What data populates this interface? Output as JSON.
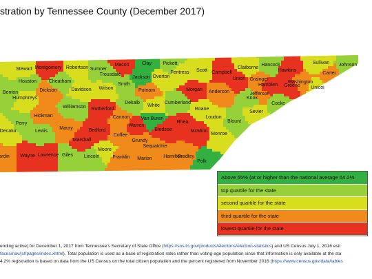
{
  "title": "stration by Tennessee County (December 2017)",
  "colors": {
    "above65": "#33b040",
    "top": "#96d13a",
    "second": "#d8de1e",
    "third": "#f08a1a",
    "lowest": "#e6321e"
  },
  "legend": [
    {
      "label": "Above 65% (at or higher than the national average 64.2%",
      "tier": "above65"
    },
    {
      "label": "top quartile for the state",
      "tier": "top"
    },
    {
      "label": "second quartile for the state",
      "tier": "second"
    },
    {
      "label": "third quartile for the state",
      "tier": "third"
    },
    {
      "label": "lowest quartile for the state",
      "tier": "lowest"
    }
  ],
  "counties": [
    {
      "name": "Stewart",
      "tier": "second"
    },
    {
      "name": "Montgomery",
      "tier": "lowest"
    },
    {
      "name": "Robertson",
      "tier": "second"
    },
    {
      "name": "Sumner",
      "tier": "top"
    },
    {
      "name": "Macon",
      "tier": "lowest"
    },
    {
      "name": "Clay",
      "tier": "above65"
    },
    {
      "name": "Pickett",
      "tier": "top"
    },
    {
      "name": "Fentress",
      "tier": "second"
    },
    {
      "name": "Scott",
      "tier": "second"
    },
    {
      "name": "Campbell",
      "tier": "lowest"
    },
    {
      "name": "Claiborne",
      "tier": "second"
    },
    {
      "name": "Hancock",
      "tier": "top"
    },
    {
      "name": "Hawkins",
      "tier": "lowest"
    },
    {
      "name": "Sullivan",
      "tier": "second"
    },
    {
      "name": "Johnson",
      "tier": "top"
    },
    {
      "name": "Carter",
      "tier": "third"
    },
    {
      "name": "Unicoi",
      "tier": "second"
    },
    {
      "name": "Washington",
      "tier": "third"
    },
    {
      "name": "Greene",
      "tier": "lowest"
    },
    {
      "name": "Hamblen",
      "tier": "lowest"
    },
    {
      "name": "Grainger",
      "tier": "third"
    },
    {
      "name": "Union",
      "tier": "lowest"
    },
    {
      "name": "Anderson",
      "tier": "third"
    },
    {
      "name": "Morgan",
      "tier": "lowest"
    },
    {
      "name": "Overton",
      "tier": "second"
    },
    {
      "name": "Jackson",
      "tier": "above65"
    },
    {
      "name": "Trousdale",
      "tier": "top"
    },
    {
      "name": "Smith",
      "tier": "top"
    },
    {
      "name": "Putnam",
      "tier": "third"
    },
    {
      "name": "Cumberland",
      "tier": "top"
    },
    {
      "name": "Roane",
      "tier": "second"
    },
    {
      "name": "Knox",
      "tier": "top"
    },
    {
      "name": "Jefferson",
      "tier": "third"
    },
    {
      "name": "Cocke",
      "tier": "top"
    },
    {
      "name": "Sevier",
      "tier": "second"
    },
    {
      "name": "Blount",
      "tier": "top"
    },
    {
      "name": "Loudon",
      "tier": "second"
    },
    {
      "name": "Monroe",
      "tier": "second"
    },
    {
      "name": "McMinn",
      "tier": "lowest"
    },
    {
      "name": "Rhea",
      "tier": "lowest"
    },
    {
      "name": "Bledsoe",
      "tier": "lowest"
    },
    {
      "name": "Van Buren",
      "tier": "above65"
    },
    {
      "name": "White",
      "tier": "second"
    },
    {
      "name": "Dekalb",
      "tier": "top"
    },
    {
      "name": "Wilson",
      "tier": "second"
    },
    {
      "name": "Davidson",
      "tier": "second"
    },
    {
      "name": "Cheatham",
      "tier": "top"
    },
    {
      "name": "Dickson",
      "tier": "third"
    },
    {
      "name": "Houston",
      "tier": "top"
    },
    {
      "name": "Humphreys",
      "tier": "second"
    },
    {
      "name": "Benton",
      "tier": "top"
    },
    {
      "name": "Hickman",
      "tier": "third"
    },
    {
      "name": "Williamson",
      "tier": "top"
    },
    {
      "name": "Rutherford",
      "tier": "lowest"
    },
    {
      "name": "Cannon",
      "tier": "third"
    },
    {
      "name": "Warren",
      "tier": "lowest"
    },
    {
      "name": "Coffee",
      "tier": "third"
    },
    {
      "name": "Grundy",
      "tier": "third"
    },
    {
      "name": "Sequatchie",
      "tier": "third"
    },
    {
      "name": "Hamilton",
      "tier": "third"
    },
    {
      "name": "Bradley",
      "tier": "third"
    },
    {
      "name": "Polk",
      "tier": "above65"
    },
    {
      "name": "Marion",
      "tier": "third"
    },
    {
      "name": "Franklin",
      "tier": "third"
    },
    {
      "name": "Moore",
      "tier": "second"
    },
    {
      "name": "Bedford",
      "tier": "lowest"
    },
    {
      "name": "Marshall",
      "tier": "lowest"
    },
    {
      "name": "Maury",
      "tier": "third"
    },
    {
      "name": "Lincoln",
      "tier": "top"
    },
    {
      "name": "Giles",
      "tier": "top"
    },
    {
      "name": "Lawrence",
      "tier": "lowest"
    },
    {
      "name": "Wayne",
      "tier": "lowest"
    },
    {
      "name": "Lewis",
      "tier": "top"
    },
    {
      "name": "Perry",
      "tier": "top"
    },
    {
      "name": "Decatur",
      "tier": "second"
    },
    {
      "name": "ardin",
      "tier": "third"
    }
  ],
  "footnote": {
    "line1_a": " ending active) for December 1, 2017 from Tennessee's Secretary of State Office (",
    "line1_link": "https://sos.tn.gov/products/elections/election-statistics",
    "line1_b": ") and US Census July 1, 2016 esti",
    "line2_link": "faces/nav/jsf/pages/index.xhtml",
    "line2_b": "). Total population is used as a base of registration rates rather than voting-age population since that information is only available at the sta",
    "line3_a": "4.2% registration is based on data from the US Census on the total citizen population and the percent registered from November 2016 (",
    "line3_link": "https://www.census.gov/data/tables"
  }
}
